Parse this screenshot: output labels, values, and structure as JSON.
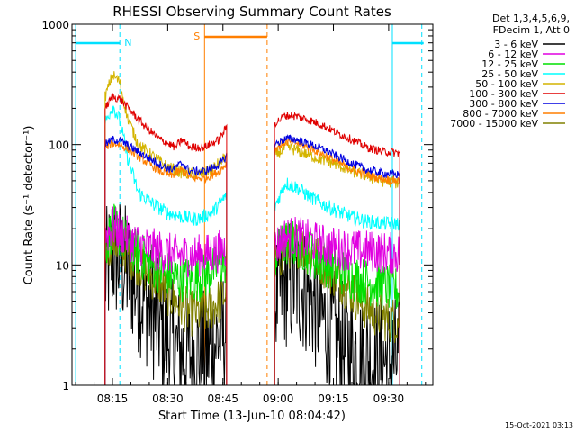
{
  "chart_data": {
    "type": "line",
    "title": "RHESSI Observing Summary Count Rates",
    "xlabel": "Start Time (13-Jun-10 08:04:42)",
    "ylabel": "Count Rate (s⁻¹ detector⁻¹)",
    "yscale": "log",
    "ylim": [
      1,
      1000
    ],
    "y_ticks": [
      {
        "value": 1,
        "label": "1"
      },
      {
        "value": 10,
        "label": "10"
      },
      {
        "value": 100,
        "label": "100"
      },
      {
        "value": 1000,
        "label": "1000"
      }
    ],
    "xlim": [
      "08:04",
      "09:42"
    ],
    "x_ticks": [
      "08:15",
      "08:30",
      "08:45",
      "09:00",
      "09:15",
      "09:30"
    ],
    "grid": false,
    "legend_position": "right",
    "legend_header": [
      "Det 1,3,4,5,6,9,",
      "FDecim 1, Att 0"
    ],
    "series": [
      {
        "name": "3 - 6 keV",
        "color": "#000000",
        "seg1": [
          [
            "08:13",
            8
          ],
          [
            "08:15",
            12
          ],
          [
            "08:17",
            11
          ],
          [
            "08:20",
            8
          ],
          [
            "08:24",
            5
          ],
          [
            "08:28",
            3
          ],
          [
            "08:32",
            2
          ],
          [
            "08:36",
            1.8
          ],
          [
            "08:40",
            1.8
          ],
          [
            "08:44",
            2.5
          ],
          [
            "08:46",
            3
          ]
        ],
        "seg2": [
          [
            "08:59",
            5
          ],
          [
            "09:02",
            7
          ],
          [
            "09:05",
            7
          ],
          [
            "09:08",
            6
          ],
          [
            "09:11",
            4
          ],
          [
            "09:14",
            3
          ],
          [
            "09:18",
            2
          ],
          [
            "09:22",
            1.8
          ],
          [
            "09:26",
            1.6
          ],
          [
            "09:30",
            1.6
          ],
          [
            "09:33",
            1.6
          ]
        ]
      },
      {
        "name": "6 - 12 keV",
        "color": "#e000e0",
        "seg1": [
          [
            "08:13",
            17
          ],
          [
            "08:15",
            21
          ],
          [
            "08:17",
            19
          ],
          [
            "08:20",
            16
          ],
          [
            "08:24",
            14
          ],
          [
            "08:28",
            13
          ],
          [
            "08:32",
            12
          ],
          [
            "08:36",
            12
          ],
          [
            "08:40",
            12
          ],
          [
            "08:44",
            13
          ],
          [
            "08:46",
            14
          ]
        ],
        "seg2": [
          [
            "08:59",
            14
          ],
          [
            "09:02",
            17
          ],
          [
            "09:05",
            17
          ],
          [
            "09:08",
            16
          ],
          [
            "09:11",
            15
          ],
          [
            "09:14",
            14
          ],
          [
            "09:18",
            13.5
          ],
          [
            "09:22",
            13
          ],
          [
            "09:26",
            13
          ],
          [
            "09:30",
            12.5
          ],
          [
            "09:33",
            12.5
          ]
        ]
      },
      {
        "name": "12 - 25 keV",
        "color": "#00e000",
        "seg1": [
          [
            "08:13",
            14
          ],
          [
            "08:15",
            21
          ],
          [
            "08:17",
            18
          ],
          [
            "08:20",
            14
          ],
          [
            "08:24",
            11
          ],
          [
            "08:28",
            9
          ],
          [
            "08:32",
            8
          ],
          [
            "08:36",
            7.5
          ],
          [
            "08:40",
            8
          ],
          [
            "08:44",
            10
          ],
          [
            "08:46",
            11
          ]
        ],
        "seg2": [
          [
            "08:59",
            12
          ],
          [
            "09:02",
            15
          ],
          [
            "09:05",
            15
          ],
          [
            "09:08",
            13
          ],
          [
            "09:11",
            11
          ],
          [
            "09:14",
            10
          ],
          [
            "09:18",
            8.5
          ],
          [
            "09:22",
            7.5
          ],
          [
            "09:26",
            7
          ],
          [
            "09:30",
            6.5
          ],
          [
            "09:33",
            6
          ]
        ]
      },
      {
        "name": "25 - 50 keV",
        "color": "#00ffff",
        "seg1": [
          [
            "08:13",
            150
          ],
          [
            "08:15",
            210
          ],
          [
            "08:17",
            160
          ],
          [
            "08:19",
            80
          ],
          [
            "08:22",
            40
          ],
          [
            "08:26",
            32
          ],
          [
            "08:30",
            27
          ],
          [
            "08:34",
            25
          ],
          [
            "08:38",
            24
          ],
          [
            "08:42",
            27
          ],
          [
            "08:46",
            38
          ]
        ],
        "seg2": [
          [
            "08:59",
            30
          ],
          [
            "09:02",
            48
          ],
          [
            "09:05",
            44
          ],
          [
            "09:08",
            38
          ],
          [
            "09:12",
            32
          ],
          [
            "09:16",
            28
          ],
          [
            "09:20",
            25
          ],
          [
            "09:24",
            23
          ],
          [
            "09:28",
            22
          ],
          [
            "09:33",
            22
          ]
        ]
      },
      {
        "name": "50 - 100 keV",
        "color": "#d4b400",
        "seg1": [
          [
            "08:13",
            250
          ],
          [
            "08:15",
            380
          ],
          [
            "08:17",
            330
          ],
          [
            "08:19",
            170
          ],
          [
            "08:22",
            100
          ],
          [
            "08:26",
            80
          ],
          [
            "08:30",
            65
          ],
          [
            "08:34",
            58
          ],
          [
            "08:38",
            56
          ],
          [
            "08:42",
            62
          ],
          [
            "08:46",
            80
          ]
        ],
        "seg2": [
          [
            "08:59",
            80
          ],
          [
            "09:02",
            95
          ],
          [
            "09:05",
            90
          ],
          [
            "09:08",
            82
          ],
          [
            "09:12",
            75
          ],
          [
            "09:16",
            68
          ],
          [
            "09:20",
            60
          ],
          [
            "09:24",
            55
          ],
          [
            "09:28",
            50
          ],
          [
            "09:33",
            48
          ]
        ]
      },
      {
        "name": "100 - 300 keV",
        "color": "#e00000",
        "seg1": [
          [
            "08:13",
            200
          ],
          [
            "08:15",
            250
          ],
          [
            "08:17",
            240
          ],
          [
            "08:20",
            190
          ],
          [
            "08:24",
            140
          ],
          [
            "08:28",
            110
          ],
          [
            "08:32",
            95
          ],
          [
            "08:34",
            110
          ],
          [
            "08:36",
            95
          ],
          [
            "08:40",
            95
          ],
          [
            "08:44",
            110
          ],
          [
            "08:46",
            140
          ]
        ],
        "seg2": [
          [
            "08:59",
            150
          ],
          [
            "09:02",
            175
          ],
          [
            "09:05",
            172
          ],
          [
            "09:08",
            162
          ],
          [
            "09:12",
            145
          ],
          [
            "09:16",
            125
          ],
          [
            "09:20",
            110
          ],
          [
            "09:24",
            95
          ],
          [
            "09:28",
            88
          ],
          [
            "09:33",
            85
          ]
        ]
      },
      {
        "name": "300 - 800 keV",
        "color": "#0000e0",
        "seg1": [
          [
            "08:13",
            100
          ],
          [
            "08:15",
            110
          ],
          [
            "08:17",
            108
          ],
          [
            "08:20",
            95
          ],
          [
            "08:24",
            80
          ],
          [
            "08:28",
            68
          ],
          [
            "08:31",
            62
          ],
          [
            "08:34",
            70
          ],
          [
            "08:36",
            60
          ],
          [
            "08:40",
            60
          ],
          [
            "08:44",
            68
          ],
          [
            "08:46",
            80
          ]
        ],
        "seg2": [
          [
            "08:59",
            100
          ],
          [
            "09:02",
            112
          ],
          [
            "09:05",
            110
          ],
          [
            "09:08",
            102
          ],
          [
            "09:12",
            92
          ],
          [
            "09:16",
            80
          ],
          [
            "09:20",
            70
          ],
          [
            "09:24",
            62
          ],
          [
            "09:28",
            58
          ],
          [
            "09:33",
            56
          ]
        ]
      },
      {
        "name": "800 - 7000 keV",
        "color": "#ff7f00",
        "seg1": [
          [
            "08:13",
            95
          ],
          [
            "08:15",
            102
          ],
          [
            "08:17",
            100
          ],
          [
            "08:20",
            88
          ],
          [
            "08:24",
            72
          ],
          [
            "08:28",
            60
          ],
          [
            "08:31",
            55
          ],
          [
            "08:34",
            62
          ],
          [
            "08:36",
            53
          ],
          [
            "08:40",
            52
          ],
          [
            "08:44",
            60
          ],
          [
            "08:46",
            70
          ]
        ],
        "seg2": [
          [
            "08:59",
            92
          ],
          [
            "09:02",
            105
          ],
          [
            "09:05",
            103
          ],
          [
            "09:08",
            95
          ],
          [
            "09:12",
            84
          ],
          [
            "09:16",
            72
          ],
          [
            "09:20",
            62
          ],
          [
            "09:24",
            56
          ],
          [
            "09:28",
            52
          ],
          [
            "09:33",
            50
          ]
        ]
      },
      {
        "name": "7000 - 15000 keV",
        "color": "#808000",
        "seg1": [
          [
            "08:13",
            13
          ],
          [
            "08:15",
            16
          ],
          [
            "08:17",
            15
          ],
          [
            "08:20",
            12
          ],
          [
            "08:24",
            9
          ],
          [
            "08:28",
            7
          ],
          [
            "08:32",
            5
          ],
          [
            "08:36",
            4
          ],
          [
            "08:40",
            4
          ],
          [
            "08:44",
            5
          ],
          [
            "08:46",
            6
          ]
        ],
        "seg2": [
          [
            "08:59",
            10
          ],
          [
            "09:02",
            14
          ],
          [
            "09:05",
            15
          ],
          [
            "09:08",
            13
          ],
          [
            "09:11",
            11
          ],
          [
            "09:14",
            9
          ],
          [
            "09:18",
            7
          ],
          [
            "09:22",
            5
          ],
          [
            "09:26",
            4
          ],
          [
            "09:30",
            3.5
          ],
          [
            "09:33",
            3.5
          ]
        ]
      }
    ],
    "annotations": [
      {
        "label": "N",
        "color": "#00e0ff",
        "time": "08:16"
      },
      {
        "label": "S",
        "color": "#ff7f00",
        "time": "08:40"
      }
    ],
    "footer": "15-Oct-2021 03:13"
  }
}
